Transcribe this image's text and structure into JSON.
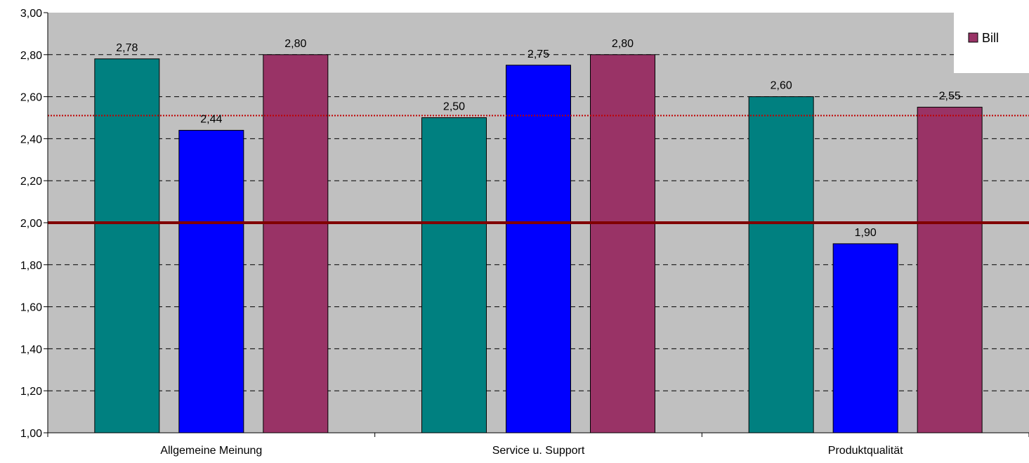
{
  "chart_data": {
    "type": "bar",
    "categories": [
      "Allgemeine Meinung",
      "Service u. Support",
      "Produktqualität"
    ],
    "series": [
      {
        "values": [
          2.78,
          2.5,
          2.6
        ],
        "labels": [
          "2,78",
          "2,50",
          "2,60"
        ],
        "color": "#008080"
      },
      {
        "values": [
          2.44,
          2.75,
          1.9
        ],
        "labels": [
          "2,44",
          "2,75",
          "1,90"
        ],
        "color": "#0000FF"
      },
      {
        "name": "Bill",
        "values": [
          2.8,
          2.8,
          2.55
        ],
        "labels": [
          "2,80",
          "2,80",
          "2,55"
        ],
        "color": "#993366"
      }
    ],
    "ylim": [
      1.0,
      3.0
    ],
    "yticks": [
      1.0,
      1.2,
      1.4,
      1.6,
      1.8,
      2.0,
      2.2,
      2.4,
      2.6,
      2.8,
      3.0
    ],
    "ytick_labels": [
      "1,00",
      "1,20",
      "1,40",
      "1,60",
      "1,80",
      "2,00",
      "2,20",
      "2,40",
      "2,60",
      "2,80",
      "3,00"
    ],
    "reference_lines": [
      {
        "value": 2.0,
        "style": "solid",
        "color": "#800000"
      },
      {
        "value": 2.51,
        "style": "dotted",
        "color": "#C00000"
      }
    ],
    "grid": true,
    "plot_background": "#C0C0C0",
    "legend": {
      "placement": "top-right",
      "entries": [
        "Bill"
      ]
    }
  }
}
